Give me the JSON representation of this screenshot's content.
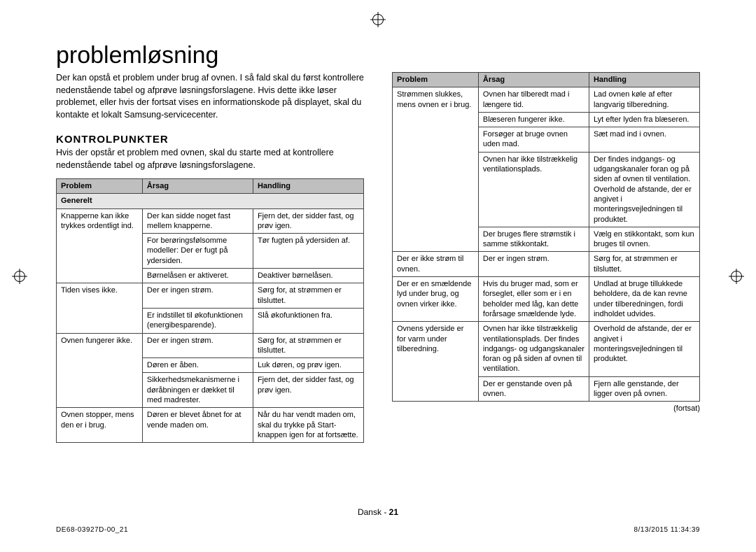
{
  "title": "problemløsning",
  "intro": "Der kan opstå et problem under brug af ovnen. I så fald skal du først kontrollere nedenstående tabel og afprøve løsningsforslagene. Hvis dette ikke løser problemet, eller hvis der fortsat vises en informationskode på displayet, skal du kontakte et lokalt Samsung-servicecenter.",
  "section_heading": "KONTROLPUNKTER",
  "section_intro": "Hvis der opstår et problem med ovnen, skal du starte med at kontrollere nedenstående tabel og afprøve løsningsforslagene.",
  "columns": {
    "problem": "Problem",
    "cause": "Årsag",
    "action": "Handling"
  },
  "left_table": {
    "subhead": "Generelt",
    "rows": [
      {
        "problem": "Knapperne kan ikke trykkes ordentligt ind.",
        "cause": "Der kan sidde noget fast mellem knapperne.",
        "action": "Fjern det, der sidder fast, og prøv igen.",
        "rowspan": 3
      },
      {
        "cause": "For berøringsfølsomme modeller: Der er fugt på ydersiden.",
        "action": "Tør fugten på ydersiden af."
      },
      {
        "cause": "Børnelåsen er aktiveret.",
        "action": "Deaktiver børnelåsen."
      },
      {
        "problem": "Tiden vises ikke.",
        "cause": "Der er ingen strøm.",
        "action": "Sørg for, at strømmen er tilsluttet.",
        "rowspan": 2
      },
      {
        "cause": "Er indstillet til økofunktionen (energibesparende).",
        "action": "Slå økofunktionen fra."
      },
      {
        "problem": "Ovnen fungerer ikke.",
        "cause": "Der er ingen strøm.",
        "action": "Sørg for, at strømmen er tilsluttet.",
        "rowspan": 3
      },
      {
        "cause": "Døren er åben.",
        "action": "Luk døren, og prøv igen."
      },
      {
        "cause": "Sikkerhedsmekanismerne i døråbningen er dækket til med madrester.",
        "action": "Fjern det, der sidder fast, og prøv igen."
      },
      {
        "problem": "Ovnen stopper, mens den er i brug.",
        "cause": "Døren er blevet åbnet for at vende maden om.",
        "action": "Når du har vendt maden om, skal du trykke på Start-knappen igen for at fortsætte.",
        "rowspan": 1
      }
    ]
  },
  "right_table": {
    "rows": [
      {
        "problem": "Strømmen slukkes, mens ovnen er i brug.",
        "cause": "Ovnen har tilberedt mad i længere tid.",
        "action": "Lad ovnen køle af efter langvarig tilberedning.",
        "rowspan": 5
      },
      {
        "cause": "Blæseren fungerer ikke.",
        "action": "Lyt efter lyden fra blæseren."
      },
      {
        "cause": "Forsøger at bruge ovnen uden mad.",
        "action": "Sæt mad ind i ovnen."
      },
      {
        "cause": "Ovnen har ikke tilstrækkelig ventilationsplads.",
        "action": "Der findes indgangs- og udgangskanaler foran og på siden af ovnen til ventilation. Overhold de afstande, der er angivet i monteringsvejledningen til produktet."
      },
      {
        "cause": "Der bruges flere strømstik i samme stikkontakt.",
        "action": "Vælg en stikkontakt, som kun bruges til ovnen."
      },
      {
        "problem": "Der er ikke strøm til ovnen.",
        "cause": "Der er ingen strøm.",
        "action": "Sørg for, at strømmen er tilsluttet.",
        "rowspan": 1
      },
      {
        "problem": "Der er en smældende lyd under brug, og ovnen virker ikke.",
        "cause": "Hvis du bruger mad, som er forseglet, eller som er i en beholder med låg, kan dette forårsage smældende lyde.",
        "action": "Undlad at bruge tillukkede beholdere, da de kan revne under tilberedningen, fordi indholdet udvides.",
        "rowspan": 1
      },
      {
        "problem": "Ovnens yderside er for varm under tilberedning.",
        "cause": "Ovnen har ikke tilstrækkelig ventilationsplads. Der findes indgangs- og udgangskanaler foran og på siden af ovnen til ventilation.",
        "action": "Overhold de afstande, der er angivet i monteringsvejledningen til produktet.",
        "rowspan": 2
      },
      {
        "cause": "Der er genstande oven på ovnen.",
        "action": "Fjern alle genstande, der ligger oven på ovnen."
      }
    ]
  },
  "continued": "(fortsat)",
  "footer_lang": "Dansk - ",
  "footer_page": "21",
  "print_left": "DE68-03927D-00_21",
  "print_right": "8/13/2015  11:34:39"
}
